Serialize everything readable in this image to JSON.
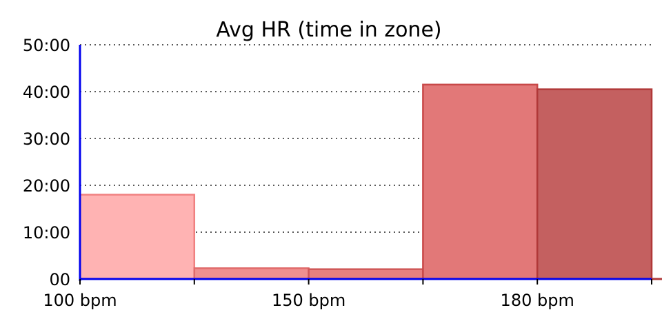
{
  "chart_data": {
    "type": "bar",
    "title": "Avg HR (time in zone)",
    "xlabel": "",
    "ylabel": "",
    "y_unit": "minutes",
    "ylim": [
      0,
      50
    ],
    "y_ticks": [
      {
        "value": 0,
        "label": "00"
      },
      {
        "value": 10,
        "label": "10:00"
      },
      {
        "value": 20,
        "label": "20:00"
      },
      {
        "value": 30,
        "label": "30:00"
      },
      {
        "value": 40,
        "label": "40:00"
      },
      {
        "value": 50,
        "label": "50:00"
      }
    ],
    "x_tick_labels": [
      "100 bpm",
      "150 bpm",
      "180 bpm"
    ],
    "grid": "horizontal-dotted",
    "legend": "none",
    "bins": [
      {
        "value": 18.0,
        "fill": "#FFB3B3",
        "stroke": "#F08080"
      },
      {
        "value": 2.3,
        "fill": "#F09090",
        "stroke": "#E06A6A"
      },
      {
        "value": 2.1,
        "fill": "#E88080",
        "stroke": "#D05858"
      },
      {
        "value": 41.5,
        "fill": "#E27878",
        "stroke": "#C84848"
      },
      {
        "value": 40.5,
        "fill": "#C46060",
        "stroke": "#B03838"
      }
    ],
    "colors": {
      "axis": "#0000EE",
      "grid": "#222222",
      "tail_mark": "#B03838"
    }
  }
}
